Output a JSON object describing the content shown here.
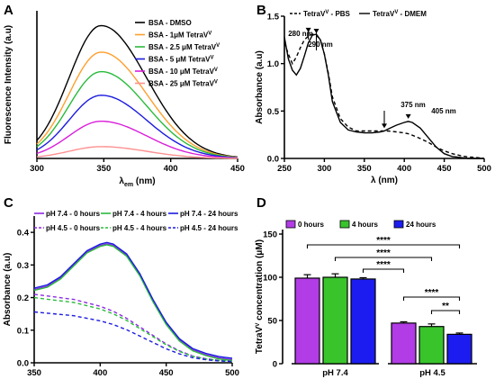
{
  "chart_data": [
    {
      "panel": "A",
      "type": "line",
      "xlabel": "λem (nm)",
      "xlabel_main": "λ",
      "xlabel_sub": "em",
      "xlabel_rest": " (nm)",
      "ylabel": "Fluorescence Intensity (a.u)",
      "xlim": [
        300,
        450
      ],
      "ylim": [
        0,
        250
      ],
      "xticks": [
        "300",
        "350",
        "400",
        "450"
      ],
      "legend_position": "top-right",
      "series": [
        {
          "name": "BSA - DMSO",
          "label_main": "BSA - DMSO",
          "label_sup": "",
          "color": "#000000",
          "peak": 225,
          "peak_x": 348
        },
        {
          "name": "BSA - 1μM TetraVV",
          "label_main": "BSA - 1μM TetraV",
          "label_sup": "V",
          "color": "#ff9f2e",
          "peak": 180,
          "peak_x": 348
        },
        {
          "name": "BSA - 2.5 μM TetraVV",
          "label_main": "BSA - 2.5 μM TetraV",
          "label_sup": "V",
          "color": "#2bbb3c",
          "peak": 147,
          "peak_x": 348
        },
        {
          "name": "BSA - 5 μM TetraVV",
          "label_main": "BSA - 5 μM TetraV",
          "label_sup": "V",
          "color": "#1c1ce0",
          "peak": 107,
          "peak_x": 348
        },
        {
          "name": "BSA - 10 μM TetraVV",
          "label_main": "BSA - 10 μM TetraV",
          "label_sup": "V",
          "color": "#d91fd9",
          "peak": 63,
          "peak_x": 348
        },
        {
          "name": "BSA - 25 μM TetraVV",
          "label_main": "BSA - 25 μM TetraV",
          "label_sup": "V",
          "color": "#ff8f8f",
          "peak": 20,
          "peak_x": 348
        }
      ]
    },
    {
      "panel": "B",
      "type": "line",
      "xlabel": "λ (nm)",
      "ylabel": "Absorbance (a.u)",
      "xlim": [
        250,
        500
      ],
      "ylim": [
        0,
        1.5
      ],
      "xticks": [
        "250",
        "300",
        "350",
        "400",
        "450",
        "500"
      ],
      "yticks": [
        "0.0",
        "0.5",
        "1.0",
        "1.5"
      ],
      "legend_position": "top",
      "series": [
        {
          "name": "TetraVV - PBS",
          "label_main": "TetraV",
          "label_sup": "V",
          "label_rest": " - PBS",
          "style": "dashed",
          "x": [
            250,
            255,
            260,
            265,
            270,
            275,
            280,
            285,
            290,
            295,
            300,
            305,
            310,
            320,
            330,
            340,
            350,
            360,
            370,
            375,
            380,
            390,
            400,
            405,
            410,
            420,
            430,
            440,
            450,
            460,
            470,
            480,
            490,
            500
          ],
          "y": [
            1.22,
            1.1,
            1.0,
            1.07,
            1.17,
            1.25,
            1.29,
            1.31,
            1.3,
            1.25,
            1.1,
            0.9,
            0.65,
            0.42,
            0.33,
            0.29,
            0.29,
            0.29,
            0.29,
            0.29,
            0.29,
            0.28,
            0.27,
            0.26,
            0.245,
            0.21,
            0.17,
            0.12,
            0.08,
            0.05,
            0.03,
            0.015,
            0.01,
            0.0
          ]
        },
        {
          "name": "TetraVV - DMEM",
          "label_main": "TetraV",
          "label_sup": "V",
          "label_rest": " - DMEM",
          "style": "solid",
          "x": [
            250,
            255,
            260,
            265,
            270,
            275,
            280,
            285,
            290,
            295,
            300,
            305,
            310,
            320,
            330,
            340,
            350,
            360,
            370,
            375,
            380,
            390,
            400,
            405,
            410,
            420,
            430,
            440,
            450,
            460,
            470,
            480,
            490,
            500
          ],
          "y": [
            1.28,
            1.05,
            0.93,
            0.88,
            0.95,
            1.08,
            1.22,
            1.3,
            1.31,
            1.25,
            1.1,
            0.88,
            0.6,
            0.38,
            0.3,
            0.28,
            0.27,
            0.27,
            0.28,
            0.29,
            0.31,
            0.35,
            0.38,
            0.39,
            0.38,
            0.32,
            0.22,
            0.12,
            0.05,
            0.02,
            0.01,
            0.0,
            0.0,
            0.0
          ]
        }
      ],
      "annotations": [
        {
          "text": "280 nm",
          "x": 280,
          "y": 1.31
        },
        {
          "text": "290 nm",
          "x": 290,
          "y": 1.3
        },
        {
          "text": "375 nm",
          "x": 375,
          "y": 0.29
        },
        {
          "text": "405 nm",
          "x": 405,
          "y": 0.39
        }
      ]
    },
    {
      "panel": "C",
      "type": "line",
      "ylabel": "Absorbance (a.u)",
      "xlim": [
        350,
        500
      ],
      "ylim": [
        0,
        0.45
      ],
      "xticks": [
        "350",
        "400",
        "450",
        "500"
      ],
      "yticks": [
        "0.0",
        "0.1",
        "0.2",
        "0.3",
        "0.4"
      ],
      "legend_position": "top",
      "series": [
        {
          "name": "pH 7.4 - 0 hours",
          "color": "#8a2be2",
          "style": "solid"
        },
        {
          "name": "pH 7.4 - 4 hours",
          "color": "#2bbb3c",
          "style": "solid"
        },
        {
          "name": "pH 7.4 - 24 hours",
          "color": "#1c1ce0",
          "style": "solid"
        },
        {
          "name": "pH 4.5 - 0 hours",
          "color": "#8a2be2",
          "style": "dashed"
        },
        {
          "name": "pH 4.5 - 4 hours",
          "color": "#2bbb3c",
          "style": "dashed"
        },
        {
          "name": "pH 4.5 - 24 hours",
          "color": "#1c1ce0",
          "style": "dashed"
        }
      ]
    },
    {
      "panel": "D",
      "type": "bar",
      "ylabel": "TetraVV concentration (μM)",
      "ylabel_main": "TetraV",
      "ylabel_sup": "V",
      "ylabel_rest": " concentration (μM)",
      "ylim": [
        0,
        150
      ],
      "yticks": [
        "0",
        "50",
        "100",
        "150"
      ],
      "categories": [
        "pH 7.4",
        "pH 4.5"
      ],
      "legend_position": "top-left",
      "series": [
        {
          "name": "0 hours",
          "color": "#b23ce6",
          "values": [
            99,
            47
          ],
          "errors": [
            4,
            1.5
          ]
        },
        {
          "name": "4 hours",
          "color": "#39c42c",
          "values": [
            100,
            43
          ],
          "errors": [
            4,
            3
          ]
        },
        {
          "name": "24 hours",
          "color": "#1c1cf0",
          "values": [
            98,
            34
          ],
          "errors": [
            1.5,
            1.5
          ]
        }
      ],
      "significance": [
        {
          "label": "****",
          "from": [
            0,
            0
          ],
          "to": [
            1,
            2
          ]
        },
        {
          "label": "****",
          "from": [
            0,
            1
          ],
          "to": [
            1,
            1
          ]
        },
        {
          "label": "****",
          "from": [
            0,
            2
          ],
          "to": [
            1,
            0
          ]
        },
        {
          "label": "****",
          "from": [
            1,
            0
          ],
          "to": [
            1,
            2
          ]
        },
        {
          "label": "**",
          "from": [
            1,
            1
          ],
          "to": [
            1,
            2
          ]
        }
      ]
    }
  ]
}
